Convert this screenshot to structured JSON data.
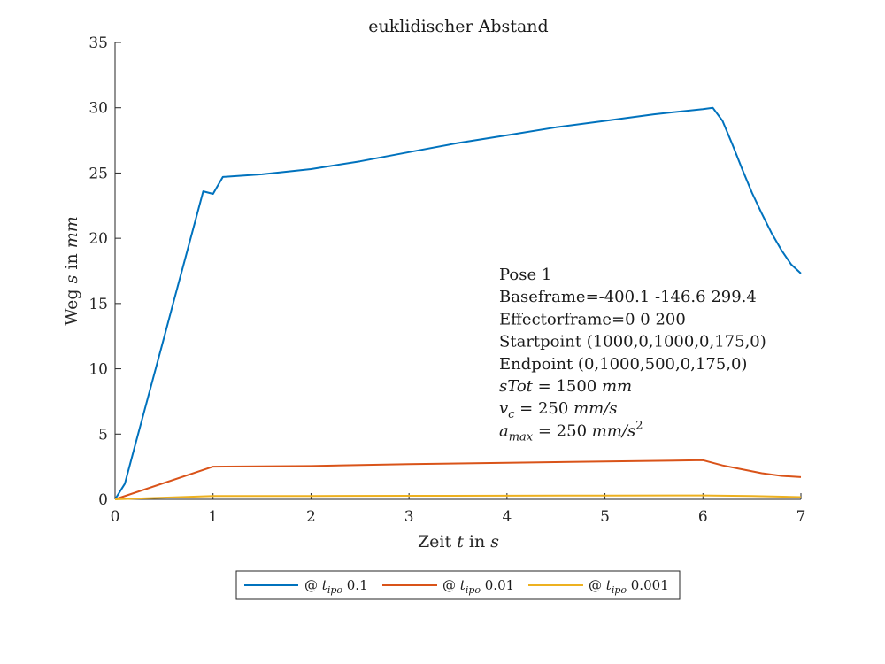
{
  "chart_data": {
    "type": "line",
    "title": "euklidischer Abstand",
    "xlabel": {
      "pre": "Zeit ",
      "var": "t",
      "post": " in ",
      "unit": "s"
    },
    "ylabel": {
      "pre": "Weg ",
      "var": "s",
      "post": " in ",
      "unit": "mm"
    },
    "xlim": [
      0,
      7
    ],
    "ylim": [
      0,
      35
    ],
    "xticks": [
      0,
      1,
      2,
      3,
      4,
      5,
      6,
      7
    ],
    "yticks": [
      0,
      5,
      10,
      15,
      20,
      25,
      30,
      35
    ],
    "grid": false,
    "legend_placement": "bottom-outside",
    "series": [
      {
        "name": "@ t_ipo 0.1",
        "legend_prefix": "@ ",
        "legend_var": "t",
        "legend_sub": "ipo",
        "legend_suffix": " 0.1",
        "color": "#0072BD",
        "x": [
          0,
          0.1,
          0.2,
          0.3,
          0.4,
          0.5,
          0.6,
          0.7,
          0.8,
          0.9,
          1.0,
          1.1,
          1.5,
          2.0,
          2.5,
          3.0,
          3.5,
          4.0,
          4.5,
          5.0,
          5.5,
          6.0,
          6.1,
          6.2,
          6.3,
          6.4,
          6.5,
          6.6,
          6.7,
          6.8,
          6.9,
          7.0
        ],
        "y": [
          0,
          1.2,
          4.0,
          6.8,
          9.6,
          12.4,
          15.2,
          18.0,
          20.8,
          23.6,
          23.4,
          24.7,
          24.9,
          25.3,
          25.9,
          26.6,
          27.3,
          27.9,
          28.5,
          29.0,
          29.5,
          29.9,
          30.0,
          29.0,
          27.2,
          25.3,
          23.5,
          21.9,
          20.4,
          19.1,
          18.0,
          17.3
        ]
      },
      {
        "name": "@ t_ipo 0.01",
        "legend_prefix": "@ ",
        "legend_var": "t",
        "legend_sub": "ipo",
        "legend_suffix": " 0.01",
        "color": "#D95319",
        "x": [
          0,
          1.0,
          2.0,
          3.0,
          4.0,
          5.0,
          6.0,
          6.2,
          6.4,
          6.6,
          6.8,
          7.0
        ],
        "y": [
          0,
          2.5,
          2.55,
          2.7,
          2.8,
          2.9,
          3.0,
          2.6,
          2.3,
          2.0,
          1.8,
          1.7
        ]
      },
      {
        "name": "@ t_ipo 0.001",
        "legend_prefix": "@ ",
        "legend_var": "t",
        "legend_sub": "ipo",
        "legend_suffix": " 0.001",
        "color": "#EDB120",
        "x": [
          0,
          1.0,
          2.0,
          3.0,
          4.0,
          5.0,
          6.0,
          6.5,
          7.0
        ],
        "y": [
          0,
          0.25,
          0.26,
          0.27,
          0.28,
          0.29,
          0.3,
          0.25,
          0.17
        ]
      }
    ],
    "annotation": {
      "lines": [
        {
          "text": "Pose 1"
        },
        {
          "text": "Baseframe=-400.1 -146.6 299.4"
        },
        {
          "text": "Effectorframe=0 0 200"
        },
        {
          "text": "Startpoint  (1000,0,1000,0,175,0)"
        },
        {
          "text": "Endpoint  (0,1000,500,0,175,0)"
        },
        {
          "var": "sTot",
          "sub": "",
          "sup": "",
          "eq": " = 1500 ",
          "unit": "mm",
          "unit_sup": ""
        },
        {
          "var": "v",
          "sub": "c",
          "sup": "",
          "eq": " = 250 ",
          "unit": "mm/s",
          "unit_sup": ""
        },
        {
          "var": "a",
          "sub": "max",
          "sup": "",
          "eq": " = 250 ",
          "unit": "mm/s",
          "unit_sup": "2"
        }
      ]
    }
  }
}
